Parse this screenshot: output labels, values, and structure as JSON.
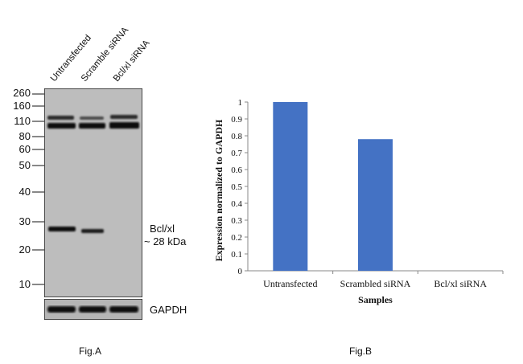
{
  "figure_a": {
    "lanes": [
      "Untransfected",
      "Scramble siRNA",
      "Bcl/xl siRNA"
    ],
    "markers": [
      "260",
      "160",
      "110",
      "80",
      "60",
      "50",
      "40",
      "30",
      "20",
      "10"
    ],
    "band_label_line1": "Bcl/xl",
    "band_label_line2": "~ 28 kDa",
    "loading_control": "GAPDH",
    "caption": "Fig.A"
  },
  "figure_b": {
    "caption": "Fig.B"
  },
  "chart_data": {
    "type": "bar",
    "categories": [
      "Untransfected",
      "Scrambled siRNA",
      "Bcl/xl siRNA"
    ],
    "values": [
      1.0,
      0.78,
      0.0
    ],
    "xlabel": "Samples",
    "ylabel": "Expression normalized to GAPDH",
    "ylim": [
      0,
      1
    ],
    "yticks": [
      "0",
      "0.1",
      "0.2",
      "0.3",
      "0.4",
      "0.5",
      "0.6",
      "0.7",
      "0.8",
      "0.9",
      "1"
    ],
    "bar_color": "#4472c4",
    "grid": false
  }
}
